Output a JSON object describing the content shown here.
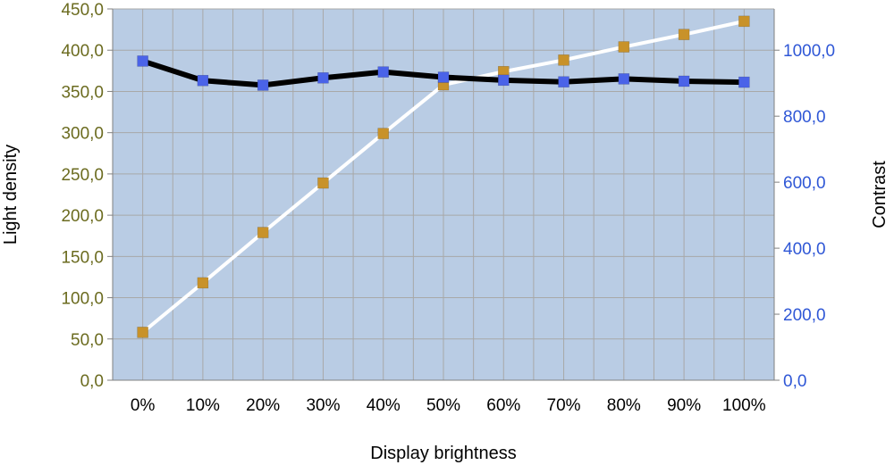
{
  "chart_data": {
    "type": "line",
    "title": "",
    "xlabel": "Display brightness",
    "ylabel": "Light density",
    "y2label": "Contrast",
    "categories": [
      "0%",
      "10%",
      "20%",
      "30%",
      "40%",
      "50%",
      "60%",
      "70%",
      "80%",
      "90%",
      "100%"
    ],
    "ylim": [
      0,
      450
    ],
    "y2lim": [
      0,
      1125
    ],
    "y_ticks": [
      "0,0",
      "50,0",
      "100,0",
      "150,0",
      "200,0",
      "250,0",
      "300,0",
      "350,0",
      "400,0",
      "450,0"
    ],
    "y_tick_values": [
      0,
      50,
      100,
      150,
      200,
      250,
      300,
      350,
      400,
      450
    ],
    "y2_ticks": [
      "0,0",
      "200,0",
      "400,0",
      "600,0",
      "800,0",
      "1000,0"
    ],
    "y2_tick_values": [
      0,
      200,
      400,
      600,
      800,
      1000
    ],
    "grid": true,
    "legend": "none",
    "series": [
      {
        "axis": "left",
        "values": [
          58,
          118,
          179,
          239,
          299,
          358,
          374,
          388,
          404,
          419,
          435
        ],
        "line_color": "#ffffff",
        "marker_color": "#c8922a"
      },
      {
        "axis": "right",
        "values": [
          967,
          908,
          894,
          916,
          934,
          918,
          909,
          904,
          913,
          906,
          903
        ],
        "line_color": "#000000",
        "marker_color": "#4a63e8"
      }
    ],
    "colors": {
      "plot_background": "#b9cce4",
      "grid": "#a8a8a8",
      "left_tick_text": "#6b6b1f",
      "right_tick_text": "#2f57d6"
    }
  }
}
